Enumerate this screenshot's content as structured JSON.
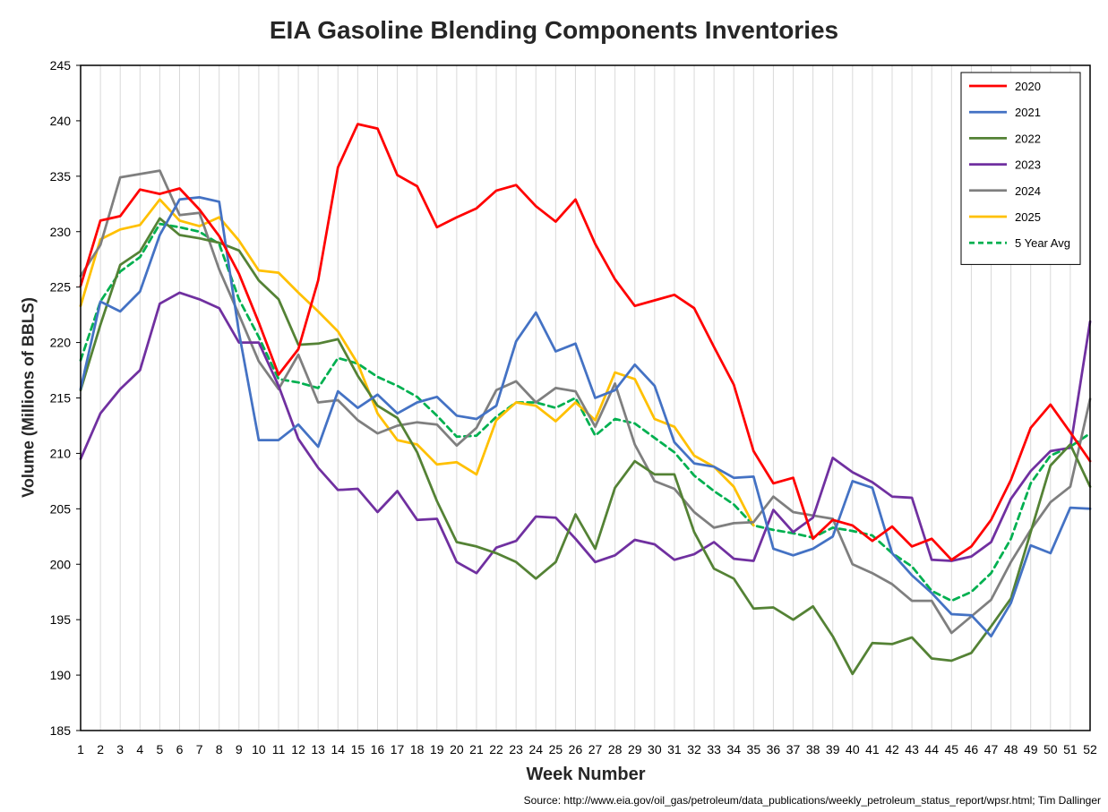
{
  "chart_data": {
    "type": "line",
    "title": "EIA Gasoline Blending Components Inventories",
    "xlabel": "Week Number",
    "ylabel": "Volume (Millions of BBLS)",
    "source": "Source: http://www.eia.gov/oil_gas/petroleum/data_publications/weekly_petroleum_status_report/wpsr.html; Tim Dallinger",
    "xlim": [
      1,
      52
    ],
    "ylim": [
      185,
      245
    ],
    "yticks": [
      185,
      190,
      195,
      200,
      205,
      210,
      215,
      220,
      225,
      230,
      235,
      240,
      245
    ],
    "grid": "vertical",
    "legend_position": "top-right",
    "x": [
      1,
      2,
      3,
      4,
      5,
      6,
      7,
      8,
      9,
      10,
      11,
      12,
      13,
      14,
      15,
      16,
      17,
      18,
      19,
      20,
      21,
      22,
      23,
      24,
      25,
      26,
      27,
      28,
      29,
      30,
      31,
      32,
      33,
      34,
      35,
      36,
      37,
      38,
      39,
      40,
      41,
      42,
      43,
      44,
      45,
      46,
      47,
      48,
      49,
      50,
      51,
      52
    ],
    "series": [
      {
        "name": "2020",
        "color": "#FF0000",
        "dashed": false,
        "values": [
          225.1,
          231.0,
          231.4,
          233.8,
          233.4,
          233.9,
          232.0,
          229.6,
          226.2,
          221.8,
          217.1,
          219.4,
          225.6,
          235.8,
          239.7,
          239.3,
          235.1,
          234.1,
          230.4,
          231.3,
          232.1,
          233.7,
          234.2,
          232.3,
          230.9,
          232.9,
          228.9,
          225.7,
          223.3,
          223.8,
          224.3,
          223.1,
          219.6,
          216.2,
          210.2,
          207.3,
          207.8,
          202.3,
          204.0,
          203.5,
          202.1,
          203.4,
          201.6,
          202.3,
          200.4,
          201.6,
          204.0,
          207.6,
          212.3,
          214.4,
          211.9,
          209.3
        ]
      },
      {
        "name": "2021",
        "color": "#4472C4",
        "dashed": false,
        "values": [
          215.8,
          223.7,
          222.8,
          224.6,
          229.7,
          232.9,
          233.1,
          232.7,
          220.9,
          211.2,
          211.2,
          212.6,
          210.6,
          215.6,
          214.1,
          215.3,
          213.6,
          214.6,
          215.1,
          213.4,
          213.1,
          214.3,
          220.1,
          222.7,
          219.2,
          219.9,
          215.0,
          215.7,
          218.0,
          216.1,
          211.0,
          209.1,
          208.8,
          207.8,
          207.9,
          201.4,
          200.8,
          201.4,
          202.5,
          207.5,
          206.9,
          201.0,
          199.0,
          197.4,
          195.5,
          195.4,
          193.5,
          196.5,
          201.7,
          201.0,
          205.1,
          205.0
        ]
      },
      {
        "name": "2022",
        "color": "#548235",
        "dashed": false,
        "values": [
          215.7,
          221.6,
          227.0,
          228.2,
          231.2,
          229.7,
          229.4,
          229.0,
          228.3,
          225.6,
          223.9,
          219.8,
          219.9,
          220.3,
          217.0,
          214.3,
          213.2,
          210.1,
          205.7,
          202.0,
          201.6,
          201.0,
          200.2,
          198.7,
          200.2,
          204.5,
          201.4,
          206.9,
          209.3,
          208.1,
          208.1,
          202.9,
          199.6,
          198.7,
          196.0,
          196.1,
          195.0,
          196.2,
          193.5,
          190.1,
          192.9,
          192.8,
          193.4,
          191.5,
          191.3,
          192.0,
          194.4,
          196.9,
          202.9,
          208.9,
          210.8,
          207.0
        ]
      },
      {
        "name": "2023",
        "color": "#7030A0",
        "dashed": false,
        "values": [
          209.5,
          213.6,
          215.8,
          217.5,
          223.5,
          224.5,
          223.9,
          223.1,
          220.0,
          220.0,
          216.1,
          211.3,
          208.7,
          206.7,
          206.8,
          204.7,
          206.6,
          204.0,
          204.1,
          200.2,
          199.2,
          201.5,
          202.1,
          204.3,
          204.2,
          202.3,
          200.2,
          200.8,
          202.2,
          201.8,
          200.4,
          200.9,
          202.0,
          200.5,
          200.3,
          204.9,
          202.9,
          204.2,
          209.6,
          208.3,
          207.4,
          206.1,
          206.0,
          200.4,
          200.3,
          200.7,
          202.0,
          205.9,
          208.4,
          210.2,
          210.5,
          221.9
        ]
      },
      {
        "name": "2024",
        "color": "#7F7F7F",
        "dashed": false,
        "values": [
          226.0,
          228.8,
          234.9,
          235.2,
          235.5,
          231.5,
          231.7,
          226.6,
          222.5,
          218.3,
          215.8,
          218.9,
          214.6,
          214.8,
          213.0,
          211.8,
          212.5,
          212.8,
          212.6,
          210.7,
          212.3,
          215.7,
          216.5,
          214.6,
          215.9,
          215.6,
          212.4,
          216.3,
          210.8,
          207.5,
          206.8,
          204.7,
          203.3,
          203.7,
          203.8,
          206.1,
          204.7,
          204.4,
          204.1,
          200.0,
          199.2,
          198.2,
          196.7,
          196.7,
          193.8,
          195.3,
          196.8,
          200.2,
          203.1,
          205.6,
          207.0,
          214.9
        ]
      },
      {
        "name": "2025",
        "color": "#FFC000",
        "dashed": false,
        "values": [
          223.3,
          229.3,
          230.2,
          230.6,
          232.9,
          231.0,
          230.5,
          231.3,
          229.2,
          226.5,
          226.3,
          224.5,
          222.8,
          221.0,
          218.1,
          213.6,
          211.2,
          210.8,
          209.0,
          209.2,
          208.1,
          213.0,
          214.6,
          214.3,
          212.9,
          214.6,
          213.0,
          217.3,
          216.7,
          213.1,
          212.4,
          209.8,
          208.8,
          207.0,
          203.5,
          null,
          null,
          null,
          null,
          null,
          null,
          null,
          null,
          null,
          null,
          null,
          null,
          null,
          null,
          null,
          null,
          null
        ]
      },
      {
        "name": "5 Year Avg",
        "color": "#00B050",
        "dashed": true,
        "values": [
          218.4,
          223.7,
          226.4,
          227.7,
          230.7,
          230.4,
          230.0,
          228.9,
          223.9,
          220.5,
          216.7,
          216.4,
          215.9,
          218.6,
          218.1,
          216.9,
          216.1,
          215.1,
          213.4,
          211.5,
          211.6,
          213.3,
          214.6,
          214.6,
          214.1,
          215.0,
          211.6,
          213.1,
          212.7,
          211.4,
          210.1,
          208.0,
          206.6,
          205.4,
          203.5,
          203.1,
          202.8,
          202.4,
          203.3,
          203.0,
          202.6,
          201.0,
          199.8,
          197.6,
          196.7,
          197.5,
          199.2,
          202.3,
          207.3,
          209.8,
          210.6,
          211.8
        ]
      }
    ]
  }
}
